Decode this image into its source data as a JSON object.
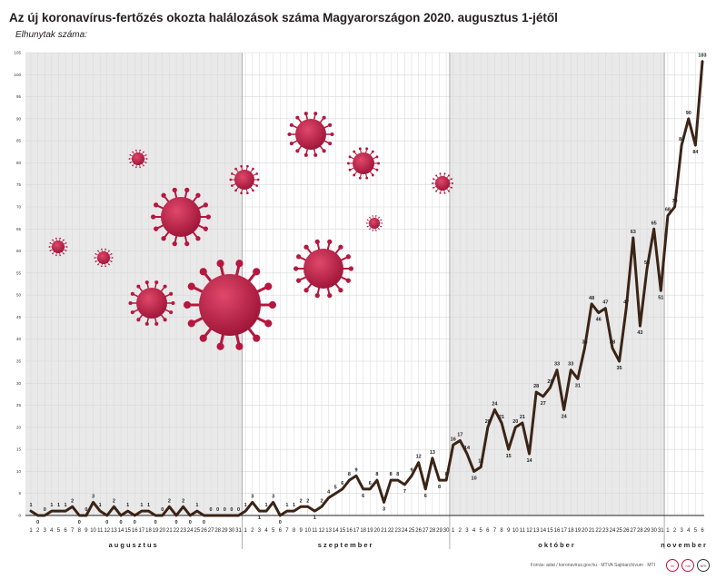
{
  "chart_data": {
    "type": "line",
    "title": "Az új koronavírus-fertőzés okozta halálozások száma Magyarországon 2020. augusztus 1-jétől",
    "ylabel": "Elhunytak száma:",
    "ylim": [
      0,
      105
    ],
    "yticks": [
      0,
      5,
      10,
      15,
      20,
      25,
      30,
      35,
      40,
      45,
      50,
      55,
      60,
      65,
      70,
      75,
      80,
      85,
      90,
      95,
      100,
      105
    ],
    "months": [
      {
        "name": "augusztus",
        "days": 31
      },
      {
        "name": "szeptember",
        "days": 30
      },
      {
        "name": "október",
        "days": 31
      },
      {
        "name": "november",
        "days": 6
      }
    ],
    "series": [
      {
        "values": [
          1,
          0,
          0,
          1,
          1,
          1,
          2,
          0,
          0,
          3,
          1,
          0,
          2,
          0,
          1,
          0,
          1,
          1,
          0,
          0,
          2,
          0,
          2,
          0,
          1,
          0,
          0,
          0,
          0,
          0,
          0,
          1,
          3,
          1,
          1,
          3,
          0,
          1,
          1,
          2,
          2,
          1,
          2,
          4,
          5,
          6,
          8,
          9,
          6,
          6,
          8,
          3,
          8,
          8,
          7,
          9,
          12,
          6,
          13,
          8,
          8,
          16,
          17,
          14,
          10,
          11,
          20,
          24,
          21,
          15,
          20,
          21,
          14,
          28,
          27,
          29,
          33,
          24,
          33,
          31,
          38,
          48,
          46,
          47,
          38,
          35,
          47,
          63,
          43,
          56,
          65,
          51,
          68,
          70,
          84,
          90,
          84,
          103
        ],
        "point_labels": [
          "1",
          "0",
          "0",
          "1",
          "1",
          "1",
          "2",
          "0",
          "0",
          "3",
          "1",
          "0",
          "2",
          "0",
          "1",
          "0",
          "1",
          "1",
          "0",
          "0",
          "2",
          "0",
          "2",
          "0",
          "1",
          "0",
          "0",
          "0",
          "0",
          "0",
          "0",
          "1",
          "3",
          "1",
          "1",
          "3",
          "0",
          "1",
          "1",
          "2",
          "2",
          "1",
          "2",
          "4",
          "5",
          "6",
          "8",
          "9",
          "6",
          "6",
          "8",
          "3",
          "8",
          "8",
          "7",
          "9",
          "12",
          "6",
          "13",
          "8",
          "8",
          "16",
          "17",
          "14",
          "10",
          "11",
          "20",
          "24",
          "21",
          "15",
          "20",
          "21",
          "14",
          "28",
          "27",
          "29",
          "33",
          "24",
          "33",
          "31",
          "38",
          "48",
          "46",
          "47",
          "38",
          "35",
          "47",
          "63",
          "43",
          "56",
          "65",
          "51",
          "68",
          "70",
          "84",
          "90",
          "84",
          "103"
        ]
      }
    ],
    "grid": true,
    "legend": "none"
  },
  "footer": {
    "source": "Forrás: adat / koronavirus.gov.hu · MTVA Sajtóarchívum · MTI",
    "logos": [
      "M",
      "mti",
      "MTI"
    ]
  },
  "colors": {
    "line": "#3b2416",
    "shade": "#e9e9e9",
    "grid": "#d8d8d8",
    "virus": "#b5183f"
  }
}
